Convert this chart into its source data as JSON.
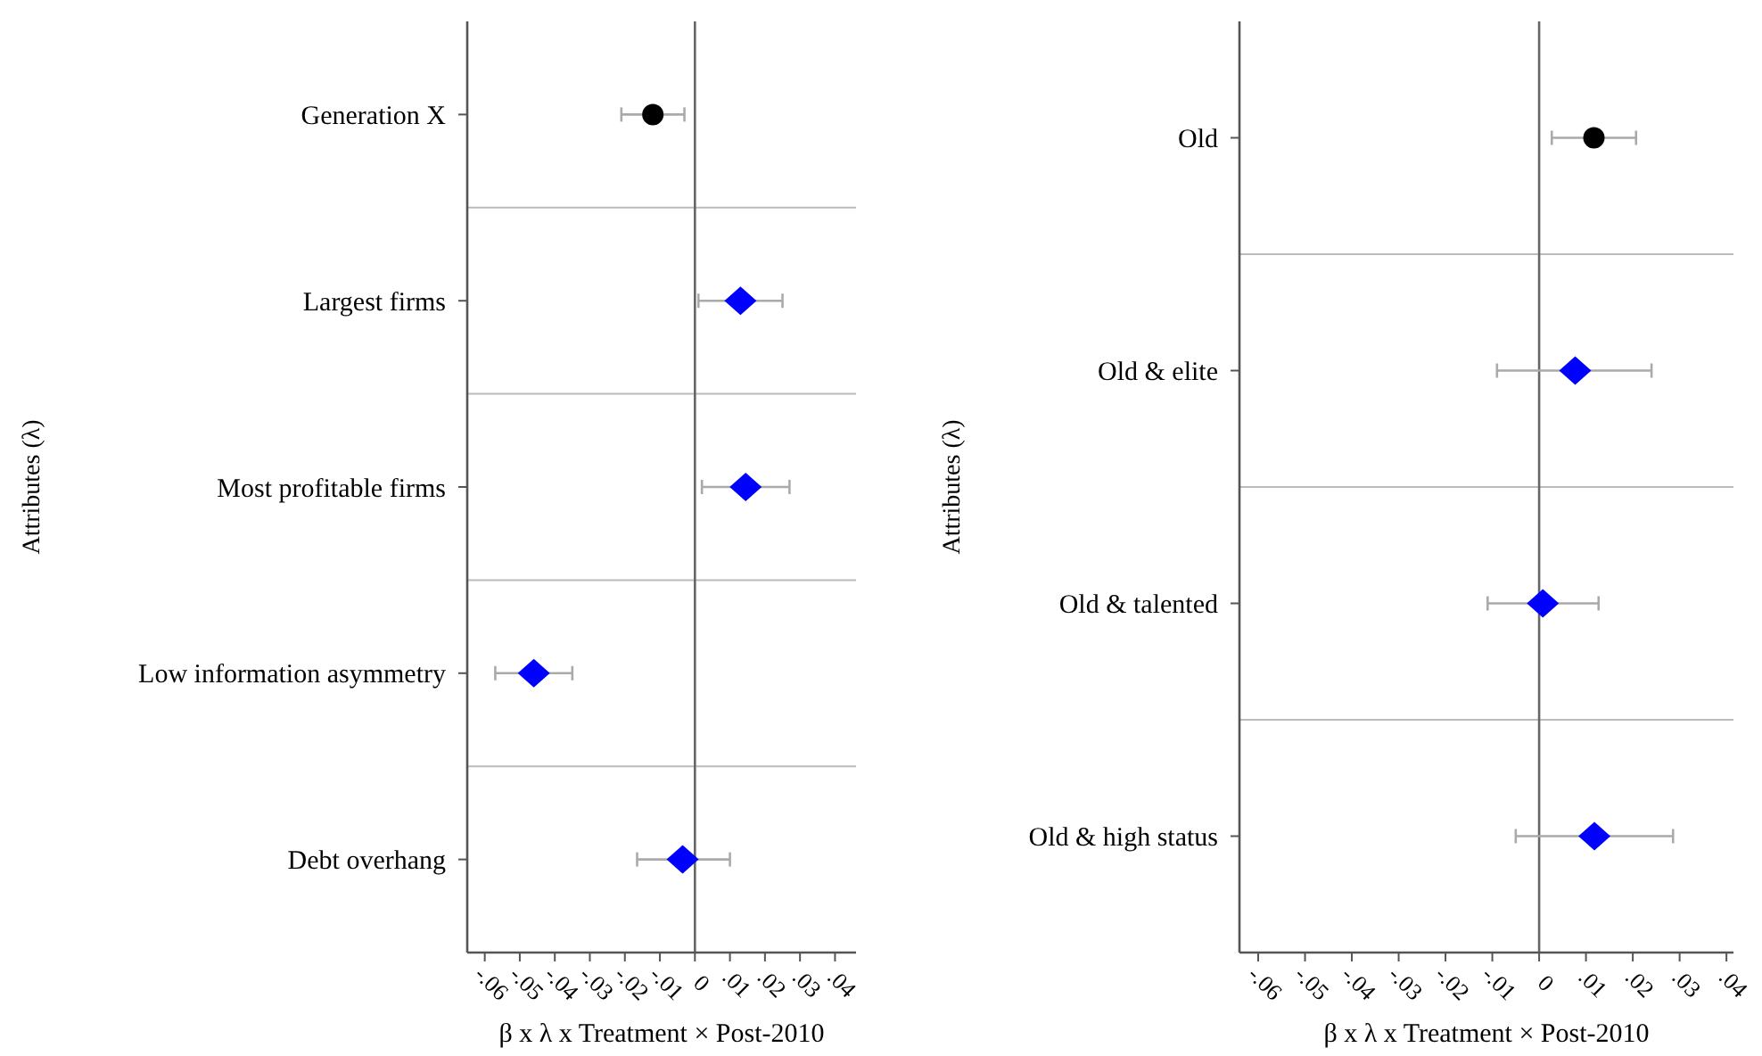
{
  "chart_data": [
    {
      "type": "scatter",
      "orientation": "horizontal",
      "ylabel": "Attributes (λ)",
      "xlabel": "β x λ x Treatment × Post-2010",
      "categories": [
        "Generation X",
        "Largest firms",
        "Most profitable firms",
        "Low information asymmetry",
        "Debt overhang"
      ],
      "series": [
        {
          "color": "#000000",
          "marker": "circle",
          "values": [
            -0.012,
            null,
            null,
            null,
            null
          ],
          "errors": [
            [
              -0.021,
              -0.003
            ],
            null,
            null,
            null,
            null
          ]
        },
        {
          "color": "#0000ff",
          "marker": "diamond",
          "values": [
            null,
            0.013,
            0.0145,
            -0.046,
            -0.0035
          ],
          "errors": [
            null,
            [
              0.001,
              0.025
            ],
            [
              0.002,
              0.027
            ],
            [
              -0.057,
              -0.035
            ],
            [
              -0.0165,
              0.01
            ]
          ]
        }
      ],
      "xlim": [
        -0.065,
        0.046
      ],
      "xticks": [
        {
          "value": -0.06,
          "label": "-.06"
        },
        {
          "value": -0.05,
          "label": "-.05"
        },
        {
          "value": -0.04,
          "label": "-.04"
        },
        {
          "value": -0.03,
          "label": "-.03"
        },
        {
          "value": -0.02,
          "label": "-.02"
        },
        {
          "value": -0.01,
          "label": "-.01"
        },
        0,
        {
          "value": 0.01,
          "label": ".01"
        },
        {
          "value": 0.02,
          "label": ".02"
        },
        {
          "value": 0.03,
          "label": ".03"
        },
        {
          "value": 0.04,
          "label": ".04"
        }
      ],
      "ref_lines": [
        {
          "axis": "x",
          "value": 0,
          "color": "#666666"
        }
      ]
    },
    {
      "type": "scatter",
      "orientation": "horizontal",
      "ylabel": "Attributes (λ)",
      "xlabel": "β x λ x Treatment × Post-2010",
      "categories": [
        "Old",
        "Old & elite",
        "Old & talented",
        "Old & high status"
      ],
      "series": [
        {
          "color": "#000000",
          "marker": "circle",
          "values": [
            0.0117,
            null,
            null,
            null
          ],
          "errors": [
            [
              0.0027,
              0.0207
            ],
            null,
            null,
            null
          ]
        },
        {
          "color": "#0000ff",
          "marker": "diamond",
          "values": [
            null,
            0.0077,
            0.0008,
            0.0118
          ],
          "errors": [
            null,
            [
              -0.009,
              0.024
            ],
            [
              -0.011,
              0.0127
            ],
            [
              -0.005,
              0.0286
            ]
          ]
        }
      ],
      "xlim": [
        -0.064,
        0.0415
      ],
      "xticks": [
        {
          "value": -0.06,
          "label": "-.06"
        },
        {
          "value": -0.05,
          "label": "-.05"
        },
        {
          "value": -0.04,
          "label": "-.04"
        },
        {
          "value": -0.03,
          "label": "-.03"
        },
        {
          "value": -0.02,
          "label": "-.02"
        },
        {
          "value": -0.01,
          "label": "-.01"
        },
        0,
        {
          "value": 0.01,
          "label": ".01"
        },
        {
          "value": 0.02,
          "label": ".02"
        },
        {
          "value": 0.03,
          "label": ".03"
        },
        {
          "value": 0.04,
          "label": ".04"
        }
      ],
      "ref_lines": [
        {
          "axis": "x",
          "value": 0,
          "color": "#666666"
        }
      ]
    }
  ]
}
